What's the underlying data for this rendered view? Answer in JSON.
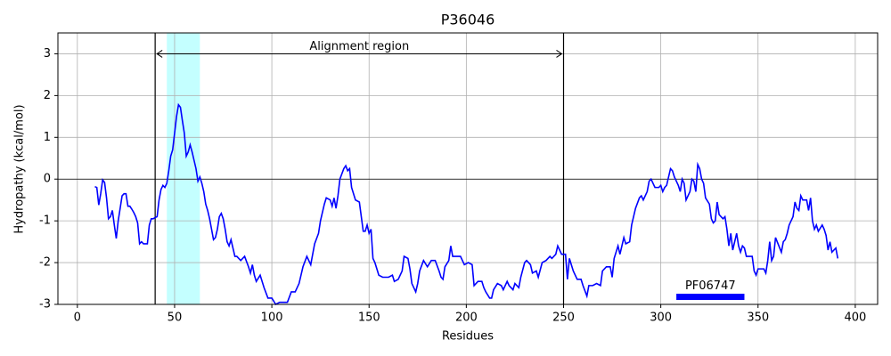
{
  "chart_data": {
    "type": "line",
    "title": "P36046",
    "x_label": "Residues",
    "y_label": "Hydropathy (kcal/mol)",
    "xlim": [
      -10,
      411.5
    ],
    "ylim": [
      -3,
      3.5
    ],
    "xticks": [
      0,
      50,
      100,
      150,
      200,
      250,
      300,
      350,
      400
    ],
    "yticks": [
      -3,
      -2,
      -1,
      0,
      1,
      2,
      3
    ],
    "grid": true,
    "color": "#0000ff",
    "x": [
      9,
      10,
      11,
      12,
      13,
      14,
      15,
      16,
      17,
      18,
      19,
      20,
      21,
      22,
      23,
      24,
      25,
      26,
      27,
      28,
      29,
      30,
      31,
      32,
      33,
      34,
      35,
      36,
      37,
      38,
      39,
      40,
      41,
      42,
      43,
      44,
      45,
      46,
      47,
      48,
      49,
      50,
      51,
      52,
      53,
      54,
      55,
      56,
      57,
      58,
      59,
      60,
      61,
      62,
      63,
      64,
      65,
      66,
      67,
      68,
      69,
      70,
      71,
      72,
      73,
      74,
      75,
      76,
      77,
      78,
      79,
      80,
      81,
      82,
      84,
      86,
      88,
      89,
      90,
      91,
      92,
      94,
      96,
      98,
      100,
      102,
      104,
      106,
      108,
      110,
      112,
      114,
      116,
      118,
      120,
      122,
      124,
      125,
      127,
      128,
      130,
      131,
      132,
      133,
      134,
      135,
      137,
      138,
      139,
      140,
      141,
      143,
      145,
      146,
      147,
      148,
      149,
      150,
      151,
      152,
      153,
      155,
      157,
      160,
      162,
      163,
      165,
      167,
      168,
      170,
      171,
      172,
      174,
      175,
      176,
      178,
      180,
      182,
      184,
      186,
      187,
      188,
      189,
      191,
      192,
      193,
      195,
      197,
      199,
      201,
      203,
      204,
      206,
      208,
      209,
      210,
      212,
      213,
      214,
      216,
      218,
      219,
      221,
      222,
      224,
      225,
      227,
      228,
      230,
      231,
      233,
      234,
      236,
      237,
      239,
      241,
      243,
      244,
      246,
      247,
      249,
      251,
      252,
      253,
      255,
      257,
      259,
      260,
      262,
      263,
      265,
      267,
      269,
      270,
      272,
      274,
      275,
      276,
      278,
      279,
      281,
      282,
      284,
      285,
      287,
      289,
      290,
      291,
      293,
      294,
      295,
      297,
      299,
      300,
      301,
      302,
      303,
      305,
      306,
      307,
      308,
      309,
      310,
      311,
      312,
      313,
      315,
      316,
      317,
      318,
      319,
      320,
      321,
      322,
      323,
      325,
      326,
      327,
      328,
      329,
      330,
      332,
      333,
      334,
      335,
      336,
      337,
      339,
      340,
      341,
      342,
      343,
      344,
      347,
      348,
      349,
      350,
      353,
      354,
      355,
      356,
      357,
      358,
      359,
      362,
      363,
      364,
      365,
      366,
      368,
      369,
      370,
      371,
      372,
      373,
      375,
      376,
      377,
      378,
      379,
      380,
      381,
      383,
      384,
      385,
      386,
      387,
      388,
      389,
      390,
      391
    ],
    "values": [
      -0.18,
      -0.2,
      -0.62,
      -0.35,
      -0.02,
      -0.08,
      -0.45,
      -0.95,
      -0.9,
      -0.75,
      -1.1,
      -1.42,
      -1.0,
      -0.7,
      -0.4,
      -0.35,
      -0.35,
      -0.65,
      -0.65,
      -0.72,
      -0.8,
      -0.9,
      -1.05,
      -1.55,
      -1.5,
      -1.55,
      -1.55,
      -1.55,
      -1.1,
      -0.95,
      -0.95,
      -0.92,
      -0.9,
      -0.5,
      -0.25,
      -0.15,
      -0.2,
      -0.1,
      0.2,
      0.55,
      0.7,
      1.1,
      1.5,
      1.78,
      1.72,
      1.4,
      1.1,
      0.55,
      0.65,
      0.82,
      0.65,
      0.45,
      0.25,
      -0.05,
      0.05,
      -0.1,
      -0.3,
      -0.6,
      -0.75,
      -0.95,
      -1.2,
      -1.45,
      -1.4,
      -1.2,
      -0.9,
      -0.82,
      -0.95,
      -1.2,
      -1.5,
      -1.6,
      -1.45,
      -1.65,
      -1.85,
      -1.85,
      -1.95,
      -1.85,
      -2.1,
      -2.25,
      -2.05,
      -2.3,
      -2.45,
      -2.3,
      -2.6,
      -2.85,
      -2.85,
      -3.0,
      -2.95,
      -2.95,
      -2.95,
      -2.7,
      -2.7,
      -2.5,
      -2.1,
      -1.85,
      -2.05,
      -1.55,
      -1.3,
      -1.0,
      -0.6,
      -0.45,
      -0.5,
      -0.65,
      -0.45,
      -0.7,
      -0.4,
      0.0,
      0.25,
      0.32,
      0.2,
      0.25,
      -0.2,
      -0.5,
      -0.55,
      -0.9,
      -1.25,
      -1.25,
      -1.1,
      -1.3,
      -1.2,
      -1.9,
      -2.0,
      -2.3,
      -2.35,
      -2.35,
      -2.3,
      -2.45,
      -2.4,
      -2.2,
      -1.85,
      -1.9,
      -2.15,
      -2.5,
      -2.7,
      -2.5,
      -2.2,
      -1.95,
      -2.1,
      -1.95,
      -1.95,
      -2.2,
      -2.35,
      -2.4,
      -2.1,
      -1.95,
      -1.6,
      -1.85,
      -1.85,
      -1.85,
      -2.05,
      -2.0,
      -2.05,
      -2.55,
      -2.45,
      -2.45,
      -2.6,
      -2.7,
      -2.85,
      -2.85,
      -2.65,
      -2.5,
      -2.55,
      -2.65,
      -2.45,
      -2.55,
      -2.65,
      -2.5,
      -2.6,
      -2.35,
      -2.0,
      -1.95,
      -2.05,
      -2.25,
      -2.2,
      -2.35,
      -2.0,
      -1.95,
      -1.85,
      -1.9,
      -1.8,
      -1.6,
      -1.8,
      -1.8,
      -2.4,
      -1.9,
      -2.2,
      -2.4,
      -2.4,
      -2.55,
      -2.8,
      -2.55,
      -2.55,
      -2.5,
      -2.55,
      -2.2,
      -2.1,
      -2.1,
      -2.35,
      -1.9,
      -1.6,
      -1.8,
      -1.4,
      -1.55,
      -1.5,
      -1.1,
      -0.7,
      -0.45,
      -0.4,
      -0.5,
      -0.3,
      -0.05,
      0.0,
      -0.2,
      -0.2,
      -0.15,
      -0.3,
      -0.2,
      -0.15,
      0.25,
      0.2,
      0.05,
      -0.05,
      -0.15,
      -0.3,
      0.0,
      -0.1,
      -0.5,
      -0.3,
      0.0,
      -0.05,
      -0.3,
      0.35,
      0.25,
      0.0,
      -0.1,
      -0.45,
      -0.6,
      -0.95,
      -1.05,
      -1.0,
      -0.55,
      -0.85,
      -0.95,
      -0.9,
      -1.2,
      -1.6,
      -1.3,
      -1.7,
      -1.3,
      -1.6,
      -1.75,
      -1.6,
      -1.65,
      -1.85,
      -1.85,
      -2.2,
      -2.3,
      -2.15,
      -2.15,
      -2.25,
      -1.95,
      -1.5,
      -1.95,
      -1.85,
      -1.4,
      -1.75,
      -1.5,
      -1.45,
      -1.3,
      -1.1,
      -0.9,
      -0.55,
      -0.7,
      -0.75,
      -0.4,
      -0.5,
      -0.5,
      -0.75,
      -0.45,
      -1.0,
      -1.2,
      -1.1,
      -1.25,
      -1.1,
      -1.2,
      -1.35,
      -1.7,
      -1.5,
      -1.75,
      -1.7,
      -1.65,
      -1.9
    ],
    "span": {
      "x0": 46,
      "x1": 63,
      "color": "#c4ffff"
    },
    "vlines": [
      40,
      250
    ],
    "hline": 0,
    "annotation": {
      "text": "Alignment region",
      "x0": 40,
      "x1": 250,
      "y": 3
    },
    "domain": {
      "label": "PF06747",
      "x0": 308,
      "x1": 343,
      "y": -2.82,
      "color": "#0000ff"
    }
  }
}
